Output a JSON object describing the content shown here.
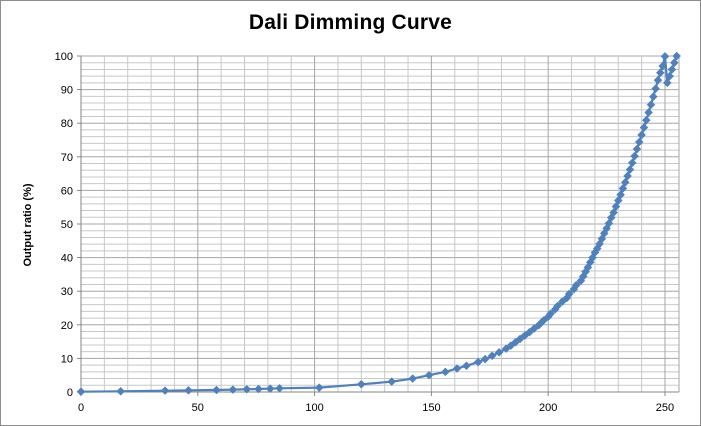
{
  "chart_data": {
    "type": "line",
    "title": "Dali Dimming Curve",
    "xlabel": "",
    "ylabel": "Output ratio (%)",
    "xlim": [
      0,
      256
    ],
    "ylim": [
      0,
      100
    ],
    "xticks": [
      0,
      50,
      100,
      150,
      200,
      250
    ],
    "yticks": [
      0,
      10,
      20,
      30,
      40,
      50,
      60,
      70,
      80,
      90,
      100
    ],
    "grid": true,
    "legend": "none",
    "colors": {
      "series": "#4f81bd",
      "grid": "#b0b0b0",
      "axis": "#868686"
    },
    "series": [
      {
        "marker": "diamond",
        "x": [
          0,
          17,
          36,
          46,
          58,
          65,
          71,
          76,
          81,
          85,
          102,
          120,
          133,
          142,
          149,
          156,
          161,
          165,
          170,
          173,
          176,
          179,
          182,
          184,
          186,
          188,
          190,
          192,
          194,
          196,
          197,
          198,
          200,
          201,
          203,
          204,
          206,
          208,
          209,
          211,
          212,
          214,
          215,
          216,
          217,
          218,
          219,
          220,
          221,
          222,
          223,
          224,
          225,
          226,
          227,
          228,
          229,
          230,
          231,
          232,
          233,
          234,
          235,
          236,
          237,
          238,
          239,
          240,
          241,
          242,
          243,
          244,
          245,
          246,
          247,
          248,
          249,
          250,
          251,
          252,
          253,
          254,
          255
        ],
        "y": [
          0.1,
          0.2,
          0.4,
          0.5,
          0.6,
          0.7,
          0.8,
          0.9,
          1.0,
          1.1,
          1.3,
          2.3,
          3.1,
          4.0,
          5.0,
          6.0,
          7.0,
          7.8,
          8.9,
          9.8,
          10.8,
          11.8,
          12.9,
          13.8,
          14.8,
          15.8,
          16.8,
          17.8,
          18.9,
          19.9,
          20.6,
          21.3,
          22.4,
          23.3,
          24.6,
          25.6,
          26.9,
          28.0,
          29.2,
          30.6,
          31.8,
          33.1,
          34.4,
          35.8,
          37.1,
          38.6,
          40.0,
          41.5,
          42.7,
          44.1,
          45.6,
          47.2,
          48.7,
          50.2,
          51.9,
          53.4,
          55.2,
          57.0,
          58.7,
          60.6,
          62.4,
          64.3,
          66.2,
          68.2,
          70.2,
          72.3,
          74.4,
          76.5,
          78.7,
          80.9,
          83.2,
          85.5,
          87.9,
          90.3,
          92.8,
          95.0,
          97.0,
          99.9,
          92.0,
          94.0,
          96.0,
          98.0,
          100.0
        ]
      }
    ]
  }
}
